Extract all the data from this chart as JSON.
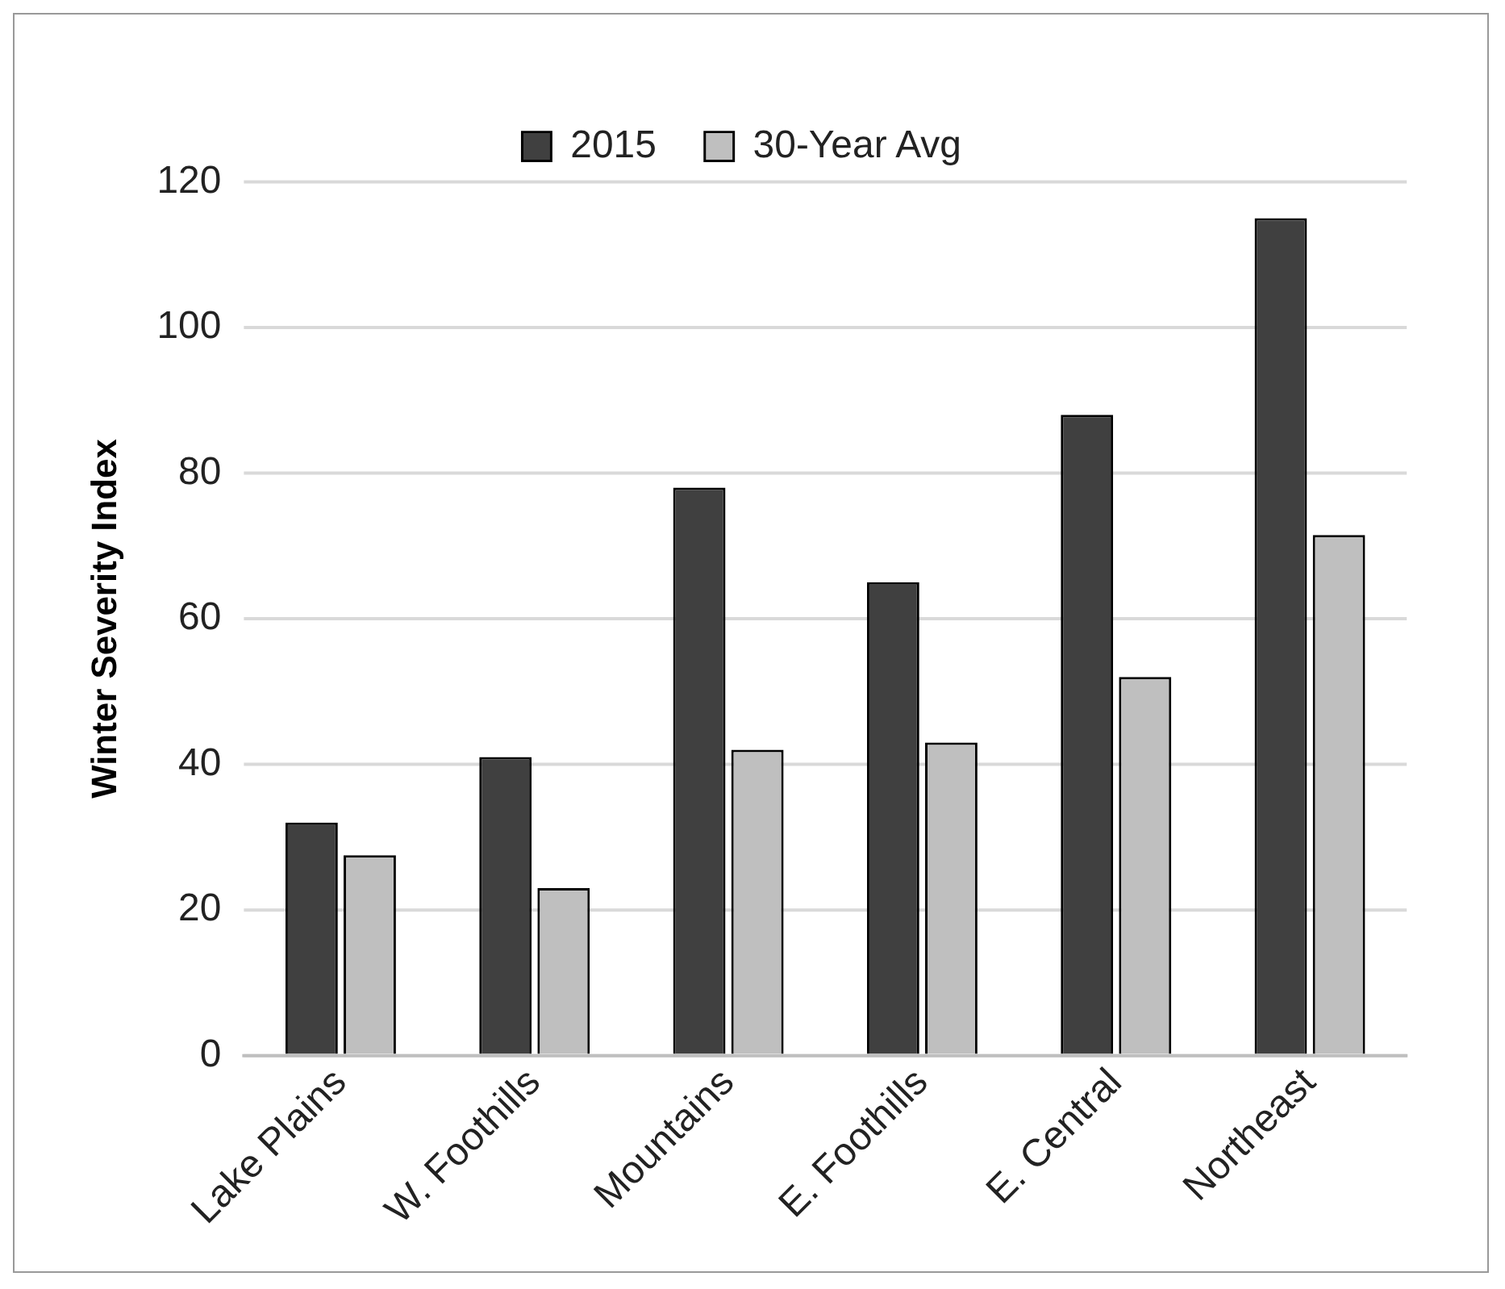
{
  "chart_data": {
    "type": "bar",
    "ylabel": "Winter Severity Index",
    "categories": [
      "Lake Plains",
      "W. Foothills",
      "Mountains",
      "E. Foothills",
      "E. Central",
      "Northeast"
    ],
    "series": [
      {
        "name": "2015",
        "color": "#404040",
        "values": [
          32,
          41,
          78,
          65,
          88,
          115
        ]
      },
      {
        "name": "30-Year Avg",
        "color": "#bfbfbf",
        "values": [
          27.5,
          23,
          42,
          43,
          52,
          71.5
        ]
      }
    ],
    "ylim": [
      0,
      120
    ],
    "yticks": [
      0,
      20,
      40,
      60,
      80,
      100,
      120
    ],
    "grid": "y",
    "legend": "top"
  }
}
